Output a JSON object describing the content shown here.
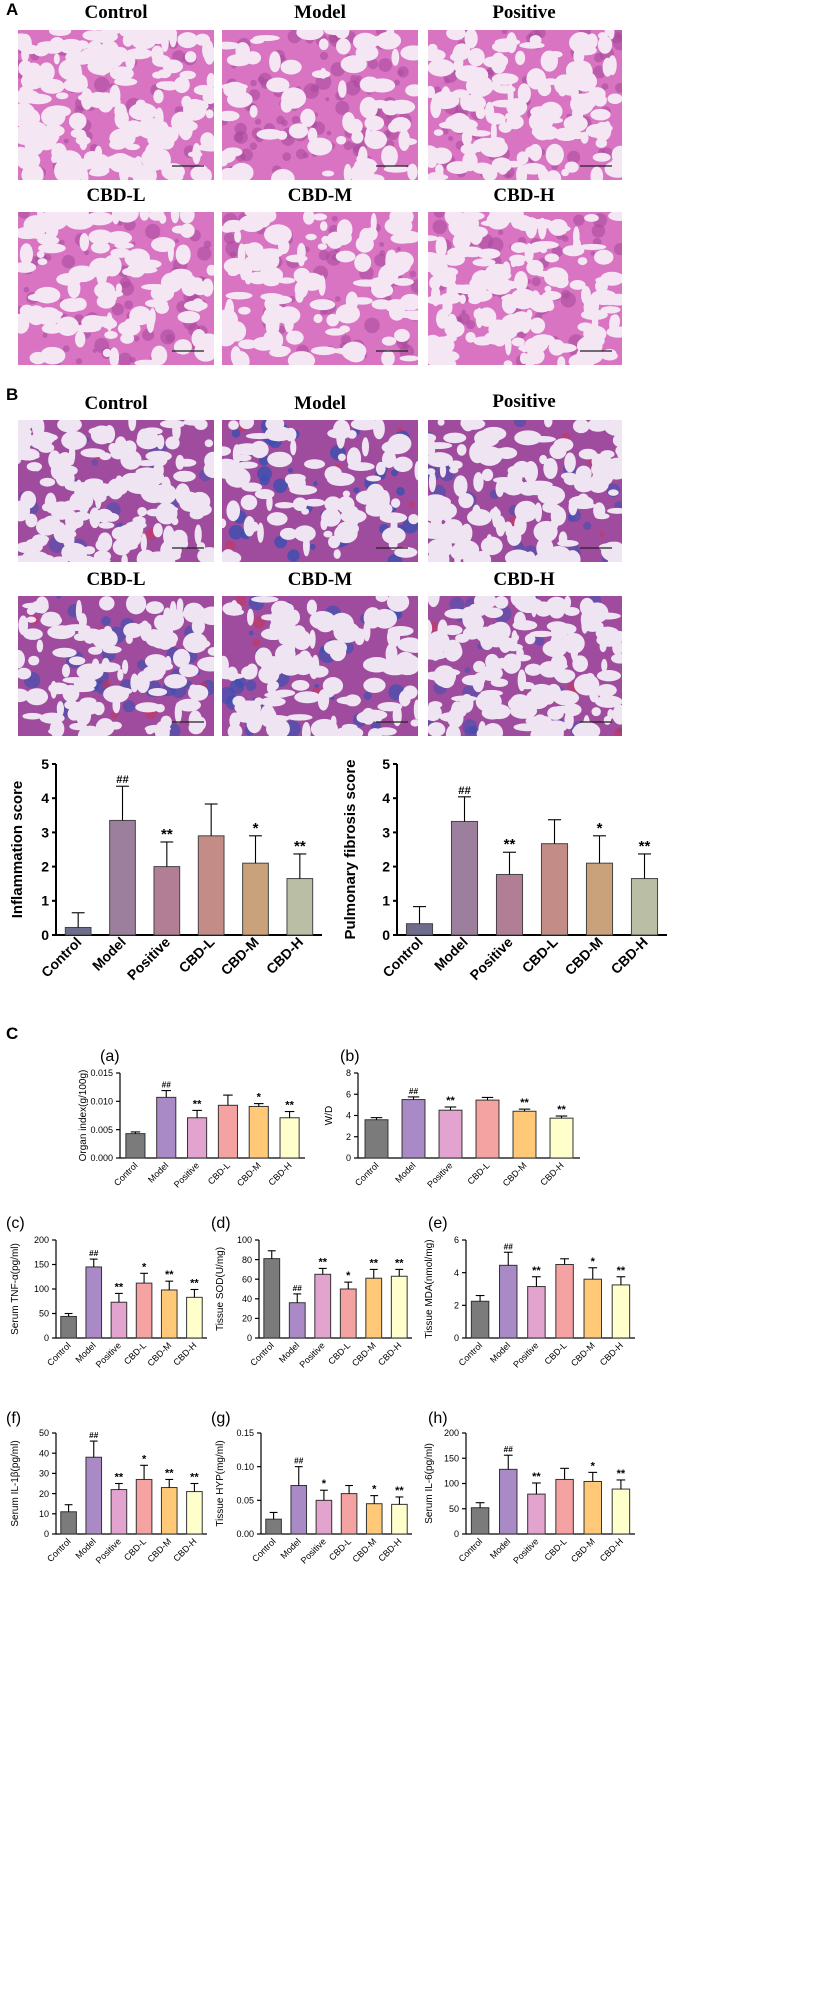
{
  "panel_labels": {
    "a": "A",
    "b": "B",
    "c": "C"
  },
  "section_a": {
    "titles": [
      "Control",
      "Model",
      "Positive",
      "CBD-L",
      "CBD-M",
      "CBD-H"
    ],
    "stain": "he",
    "colors": {
      "bg": "#f4e6f3",
      "tissue": "#d874c2",
      "dark": "#a8489c"
    }
  },
  "section_b": {
    "titles": [
      "Control",
      "Model",
      "Positive",
      "CBD-L",
      "CBD-M",
      "CBD-H"
    ],
    "stain": "masson",
    "colors": {
      "bg": "#efe4f2",
      "tissue": "#a04c9e",
      "blue": "#3a4fb0",
      "red": "#d03050"
    }
  },
  "chart_data": [
    {
      "id": "inflammation",
      "type": "bar",
      "ylabel": "Inflammation score",
      "ylim": [
        0,
        5
      ],
      "yticks": [
        0,
        1,
        2,
        3,
        4,
        5
      ],
      "categories": [
        "Control",
        "Model",
        "Positive",
        "CBD-L",
        "CBD-M",
        "CBD-H"
      ],
      "values": [
        0.22,
        3.35,
        2.0,
        2.9,
        2.1,
        1.65
      ],
      "errors": [
        0.43,
        1.0,
        0.72,
        0.93,
        0.8,
        0.72
      ],
      "annotations": [
        "",
        "##",
        "**",
        "",
        "*",
        "**"
      ],
      "colors": [
        "#6f6d8c",
        "#9c7f9c",
        "#b27e96",
        "#c48c86",
        "#c9a27c",
        "#b9bea4"
      ]
    },
    {
      "id": "fibrosis",
      "type": "bar",
      "ylabel": "Pulmonary fibrosis score",
      "ylim": [
        0,
        5
      ],
      "yticks": [
        0,
        1,
        2,
        3,
        4,
        5
      ],
      "categories": [
        "Control",
        "Model",
        "Positive",
        "CBD-L",
        "CBD-M",
        "CBD-H"
      ],
      "values": [
        0.33,
        3.32,
        1.77,
        2.67,
        2.1,
        1.65
      ],
      "errors": [
        0.5,
        0.72,
        0.65,
        0.7,
        0.8,
        0.72
      ],
      "annotations": [
        "",
        "##",
        "**",
        "",
        "*",
        "**"
      ],
      "colors": [
        "#6f6d8c",
        "#9c7f9c",
        "#b27e96",
        "#c48c86",
        "#c9a27c",
        "#b9bea4"
      ]
    },
    {
      "id": "a",
      "label": "(a)",
      "type": "bar",
      "ylabel": "Organ index(g/100g)",
      "ylim": [
        0,
        0.015
      ],
      "yticks": [
        0.0,
        0.005,
        0.01,
        0.015
      ],
      "ytick_labels": [
        "0.000",
        "0.005",
        "0.010",
        "0.015"
      ],
      "categories": [
        "Control",
        "Model",
        "Positive",
        "CBD-L",
        "CBD-M",
        "CBD-H"
      ],
      "values": [
        0.0043,
        0.0107,
        0.0071,
        0.0093,
        0.0091,
        0.0071
      ],
      "errors": [
        0.0003,
        0.0012,
        0.0013,
        0.0018,
        0.0005,
        0.0011
      ],
      "annotations": [
        "",
        "##",
        "**",
        "",
        "*",
        "**"
      ],
      "colors": [
        "#7b7b7b",
        "#a98ac7",
        "#e3a3cf",
        "#f4a2a2",
        "#ffc978",
        "#ffffcc"
      ]
    },
    {
      "id": "b",
      "label": "(b)",
      "type": "bar",
      "ylabel": "W/D",
      "ylim": [
        0,
        8
      ],
      "yticks": [
        0,
        2,
        4,
        6,
        8
      ],
      "categories": [
        "Control",
        "Model",
        "Positive",
        "CBD-L",
        "CBD-M",
        "CBD-H"
      ],
      "values": [
        3.6,
        5.5,
        4.5,
        5.45,
        4.4,
        3.75
      ],
      "errors": [
        0.2,
        0.25,
        0.3,
        0.25,
        0.2,
        0.2
      ],
      "annotations": [
        "",
        "##",
        "**",
        "",
        "**",
        "**"
      ],
      "colors": [
        "#7b7b7b",
        "#a98ac7",
        "#e3a3cf",
        "#f4a2a2",
        "#ffc978",
        "#ffffcc"
      ]
    },
    {
      "id": "c",
      "label": "(c)",
      "type": "bar",
      "ylabel": "Serum TNF-α(pg/ml)",
      "ylim": [
        0,
        200
      ],
      "yticks": [
        0,
        50,
        100,
        150,
        200
      ],
      "categories": [
        "Control",
        "Model",
        "Positive",
        "CBD-L",
        "CBD-M",
        "CBD-H"
      ],
      "values": [
        44,
        145,
        73,
        112,
        98,
        83
      ],
      "errors": [
        6,
        16,
        18,
        20,
        18,
        16
      ],
      "annotations": [
        "",
        "##",
        "**",
        "*",
        "**",
        "**"
      ],
      "colors": [
        "#7b7b7b",
        "#a98ac7",
        "#e3a3cf",
        "#f4a2a2",
        "#ffc978",
        "#ffffcc"
      ]
    },
    {
      "id": "d",
      "label": "(d)",
      "type": "bar",
      "ylabel": "Tissue SOD(U/mg)",
      "ylim": [
        0,
        100
      ],
      "yticks": [
        0,
        20,
        40,
        60,
        80,
        100
      ],
      "categories": [
        "Control",
        "Model",
        "Positive",
        "CBD-L",
        "CBD-M",
        "CBD-H"
      ],
      "values": [
        81,
        36,
        65,
        50,
        61,
        63
      ],
      "errors": [
        8,
        9,
        6,
        7,
        9,
        7
      ],
      "annotations": [
        "",
        "##",
        "**",
        "*",
        "**",
        "**"
      ],
      "colors": [
        "#7b7b7b",
        "#a98ac7",
        "#e3a3cf",
        "#f4a2a2",
        "#ffc978",
        "#ffffcc"
      ]
    },
    {
      "id": "e",
      "label": "(e)",
      "type": "bar",
      "ylabel": "Tissue MDA(nmol/mg)",
      "ylim": [
        0,
        6
      ],
      "yticks": [
        0,
        2,
        4,
        6
      ],
      "categories": [
        "Control",
        "Model",
        "Positive",
        "CBD-L",
        "CBD-M",
        "CBD-H"
      ],
      "values": [
        2.25,
        4.45,
        3.15,
        4.5,
        3.6,
        3.25
      ],
      "errors": [
        0.35,
        0.8,
        0.6,
        0.35,
        0.7,
        0.5
      ],
      "annotations": [
        "",
        "##",
        "**",
        "",
        "*",
        "**"
      ],
      "colors": [
        "#7b7b7b",
        "#a98ac7",
        "#e3a3cf",
        "#f4a2a2",
        "#ffc978",
        "#ffffcc"
      ]
    },
    {
      "id": "f",
      "label": "(f)",
      "type": "bar",
      "ylabel": "Serum IL-1β(pg/ml)",
      "ylim": [
        0,
        50
      ],
      "yticks": [
        0,
        10,
        20,
        30,
        40,
        50
      ],
      "categories": [
        "Control",
        "Model",
        "Positive",
        "CBD-L",
        "CBD-M",
        "CBD-H"
      ],
      "values": [
        11,
        38,
        22,
        27,
        23,
        21
      ],
      "errors": [
        3.5,
        8,
        3,
        7,
        4,
        4
      ],
      "annotations": [
        "",
        "##",
        "**",
        "*",
        "**",
        "**"
      ],
      "colors": [
        "#7b7b7b",
        "#a98ac7",
        "#e3a3cf",
        "#f4a2a2",
        "#ffc978",
        "#ffffcc"
      ]
    },
    {
      "id": "g",
      "label": "(g)",
      "type": "bar",
      "ylabel": "Tissue HYP(mg/ml)",
      "ylim": [
        0,
        0.15
      ],
      "yticks": [
        0,
        0.05,
        0.1,
        0.15
      ],
      "ytick_labels": [
        "0.00",
        "0.05",
        "0.10",
        "0.15"
      ],
      "categories": [
        "Control",
        "Model",
        "Positive",
        "CBD-L",
        "CBD-M",
        "CBD-H"
      ],
      "values": [
        0.022,
        0.072,
        0.05,
        0.06,
        0.045,
        0.044
      ],
      "errors": [
        0.01,
        0.028,
        0.015,
        0.012,
        0.012,
        0.011
      ],
      "annotations": [
        "",
        "##",
        "*",
        "",
        "*",
        "**"
      ],
      "colors": [
        "#7b7b7b",
        "#a98ac7",
        "#e3a3cf",
        "#f4a2a2",
        "#ffc978",
        "#ffffcc"
      ]
    },
    {
      "id": "h",
      "label": "(h)",
      "type": "bar",
      "ylabel": "Serum IL-6(pg/ml)",
      "ylim": [
        0,
        200
      ],
      "yticks": [
        0,
        50,
        100,
        150,
        200
      ],
      "categories": [
        "Control",
        "Model",
        "Positive",
        "CBD-L",
        "CBD-M",
        "CBD-H"
      ],
      "values": [
        52,
        128,
        79,
        108,
        104,
        89
      ],
      "errors": [
        10,
        28,
        22,
        22,
        18,
        18
      ],
      "annotations": [
        "",
        "##",
        "**",
        "",
        "*",
        "**"
      ],
      "colors": [
        "#7b7b7b",
        "#a98ac7",
        "#e3a3cf",
        "#f4a2a2",
        "#ffc978",
        "#ffffcc"
      ]
    }
  ]
}
